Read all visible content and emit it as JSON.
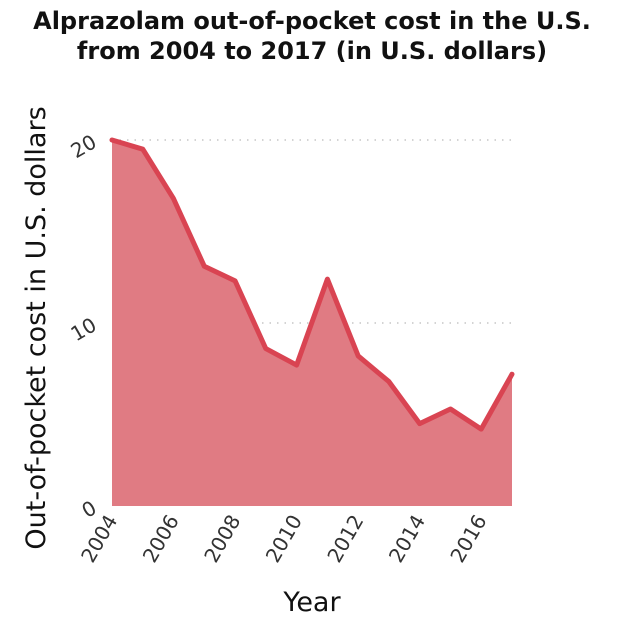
{
  "chart_data": {
    "type": "area",
    "title": [
      "Alprazolam out-of-pocket cost in the U.S.",
      "from 2004 to 2017 (in U.S. dollars)"
    ],
    "xlabel": "Year",
    "ylabel": "Out-of-pocket cost in U.S. dollars",
    "x": [
      2004,
      2005,
      2006,
      2007,
      2008,
      2009,
      2010,
      2011,
      2012,
      2013,
      2014,
      2015,
      2016,
      2017
    ],
    "values": [
      20.0,
      19.5,
      16.8,
      13.1,
      12.3,
      8.6,
      7.7,
      12.4,
      8.2,
      6.8,
      4.5,
      5.3,
      4.2,
      7.2
    ],
    "xticks": [
      "2004",
      "2006",
      "2008",
      "2010",
      "2012",
      "2014",
      "2016"
    ],
    "yticks": [
      "0",
      "10",
      "20"
    ],
    "xlim": [
      2004,
      2017
    ],
    "ylim": [
      0,
      20
    ],
    "grid": "horizontal-dotted",
    "line_color": "#d94452",
    "fill_color": "#e07b83"
  }
}
